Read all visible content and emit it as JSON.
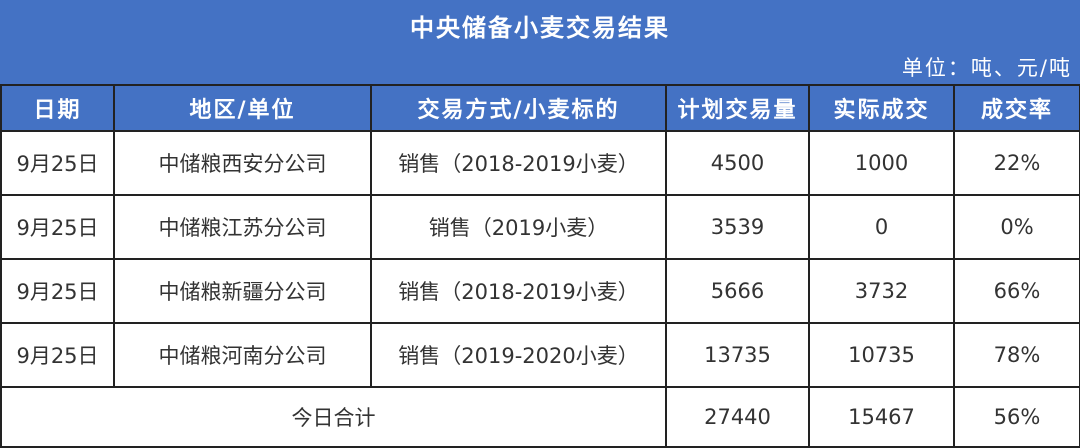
{
  "title": "中央储备小麦交易结果",
  "unit": "单位：吨、元/吨",
  "headers": [
    "日期",
    "地区/单位",
    "交易方式/小麦标的",
    "计划交易量",
    "实际成交",
    "成交率"
  ],
  "rows": [
    [
      "9月25日",
      "中储粮西安分公司",
      "销售（2018-2019小麦）",
      "4500",
      "1000",
      "22%"
    ],
    [
      "9月25日",
      "中储粮江苏分公司",
      "销售（2019小麦）",
      "3539",
      "0",
      "0%"
    ],
    [
      "9月25日",
      "中储粮新疆分公司",
      "销售（2018-2019小麦）",
      "5666",
      "3732",
      "66%"
    ],
    [
      "9月25日",
      "中储粮河南分公司",
      "销售（2019-2020小麦）",
      "13735",
      "10735",
      "78%"
    ]
  ],
  "total": {
    "label": "今日合计",
    "planned": "27440",
    "actual": "15467",
    "rate": "56%"
  },
  "colors": {
    "header_bg": "#4472C4",
    "header_text": "#FFFFFF",
    "border": "#222222"
  }
}
